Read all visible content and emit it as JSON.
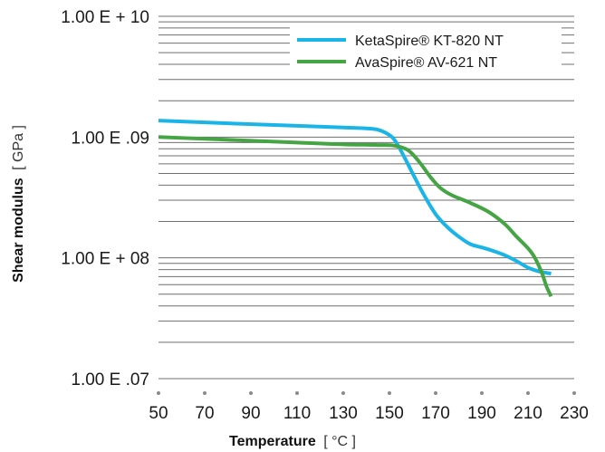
{
  "chart_data": {
    "type": "line",
    "xlabel": "Temperature",
    "xlabel_unit": "[ °C ]",
    "ylabel": "Shear modulus",
    "ylabel_unit": "[ GPa ]",
    "y_scale": "log",
    "ylim": [
      10000000,
      10000000000
    ],
    "xlim": [
      50,
      230
    ],
    "x_ticks": [
      50,
      70,
      90,
      110,
      130,
      150,
      170,
      190,
      210,
      230
    ],
    "x_tick_labels": [
      "50",
      "70",
      "90",
      "110",
      "130",
      "150",
      "170",
      "190",
      "210",
      "230"
    ],
    "y_ticks": [
      10000000000,
      1000000000,
      100000000,
      10000000
    ],
    "y_tick_labels": [
      "1.00 E + 10",
      "1.00 E .09",
      "1.00 E + 08",
      "1.00 E .07"
    ],
    "grid": "horizontal log minor lines",
    "legend_position": "top-right",
    "series": [
      {
        "name": "KetaSpire® KT-820 NT",
        "color": "#1bb4e6",
        "points": [
          [
            50,
            1370000000
          ],
          [
            80,
            1300000000
          ],
          [
            110,
            1240000000
          ],
          [
            130,
            1200000000
          ],
          [
            140,
            1180000000
          ],
          [
            145,
            1150000000
          ],
          [
            150,
            1040000000
          ],
          [
            153,
            900000000
          ],
          [
            157,
            650000000
          ],
          [
            161,
            460000000
          ],
          [
            165,
            330000000
          ],
          [
            170,
            230000000
          ],
          [
            175,
            180000000
          ],
          [
            180,
            150000000
          ],
          [
            185,
            130000000
          ],
          [
            190,
            122000000
          ],
          [
            195,
            114000000
          ],
          [
            200,
            105000000
          ],
          [
            205,
            94000000
          ],
          [
            210,
            83000000
          ],
          [
            215,
            77000000
          ],
          [
            220,
            74000000
          ]
        ]
      },
      {
        "name": "AvaSpire® AV-621 NT",
        "color": "#45a544",
        "points": [
          [
            50,
            1000000000
          ],
          [
            80,
            950000000
          ],
          [
            110,
            900000000
          ],
          [
            130,
            870000000
          ],
          [
            145,
            860000000
          ],
          [
            152,
            850000000
          ],
          [
            158,
            780000000
          ],
          [
            163,
            620000000
          ],
          [
            168,
            460000000
          ],
          [
            172,
            380000000
          ],
          [
            177,
            330000000
          ],
          [
            185,
            285000000
          ],
          [
            193,
            240000000
          ],
          [
            200,
            190000000
          ],
          [
            205,
            150000000
          ],
          [
            210,
            120000000
          ],
          [
            213,
            100000000
          ],
          [
            216,
            75000000
          ],
          [
            218,
            58000000
          ],
          [
            220,
            48000000
          ]
        ]
      }
    ]
  }
}
